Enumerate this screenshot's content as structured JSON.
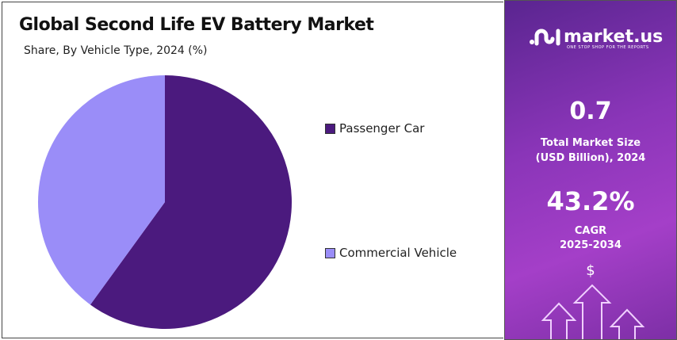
{
  "chart_data": {
    "type": "pie",
    "title": "Global Second Life EV Battery Market",
    "subtitle": "Share, By Vehicle Type, 2024 (%)",
    "categories": [
      "Passenger Car",
      "Commercial Vehicle"
    ],
    "values": [
      60,
      40
    ],
    "colors": [
      "#4b1a7e",
      "#9a8df8"
    ],
    "legend": "right"
  },
  "sidebar": {
    "brand": "market.us",
    "tagline": "ONE STOP SHOP FOR THE REPORTS",
    "market_size": "0.7",
    "market_size_label_1": "Total Market Size",
    "market_size_label_2": "(USD Billion), 2024",
    "cagr": "43.2%",
    "cagr_label": "CAGR",
    "cagr_period": "2025-2034",
    "dollar": "$"
  }
}
